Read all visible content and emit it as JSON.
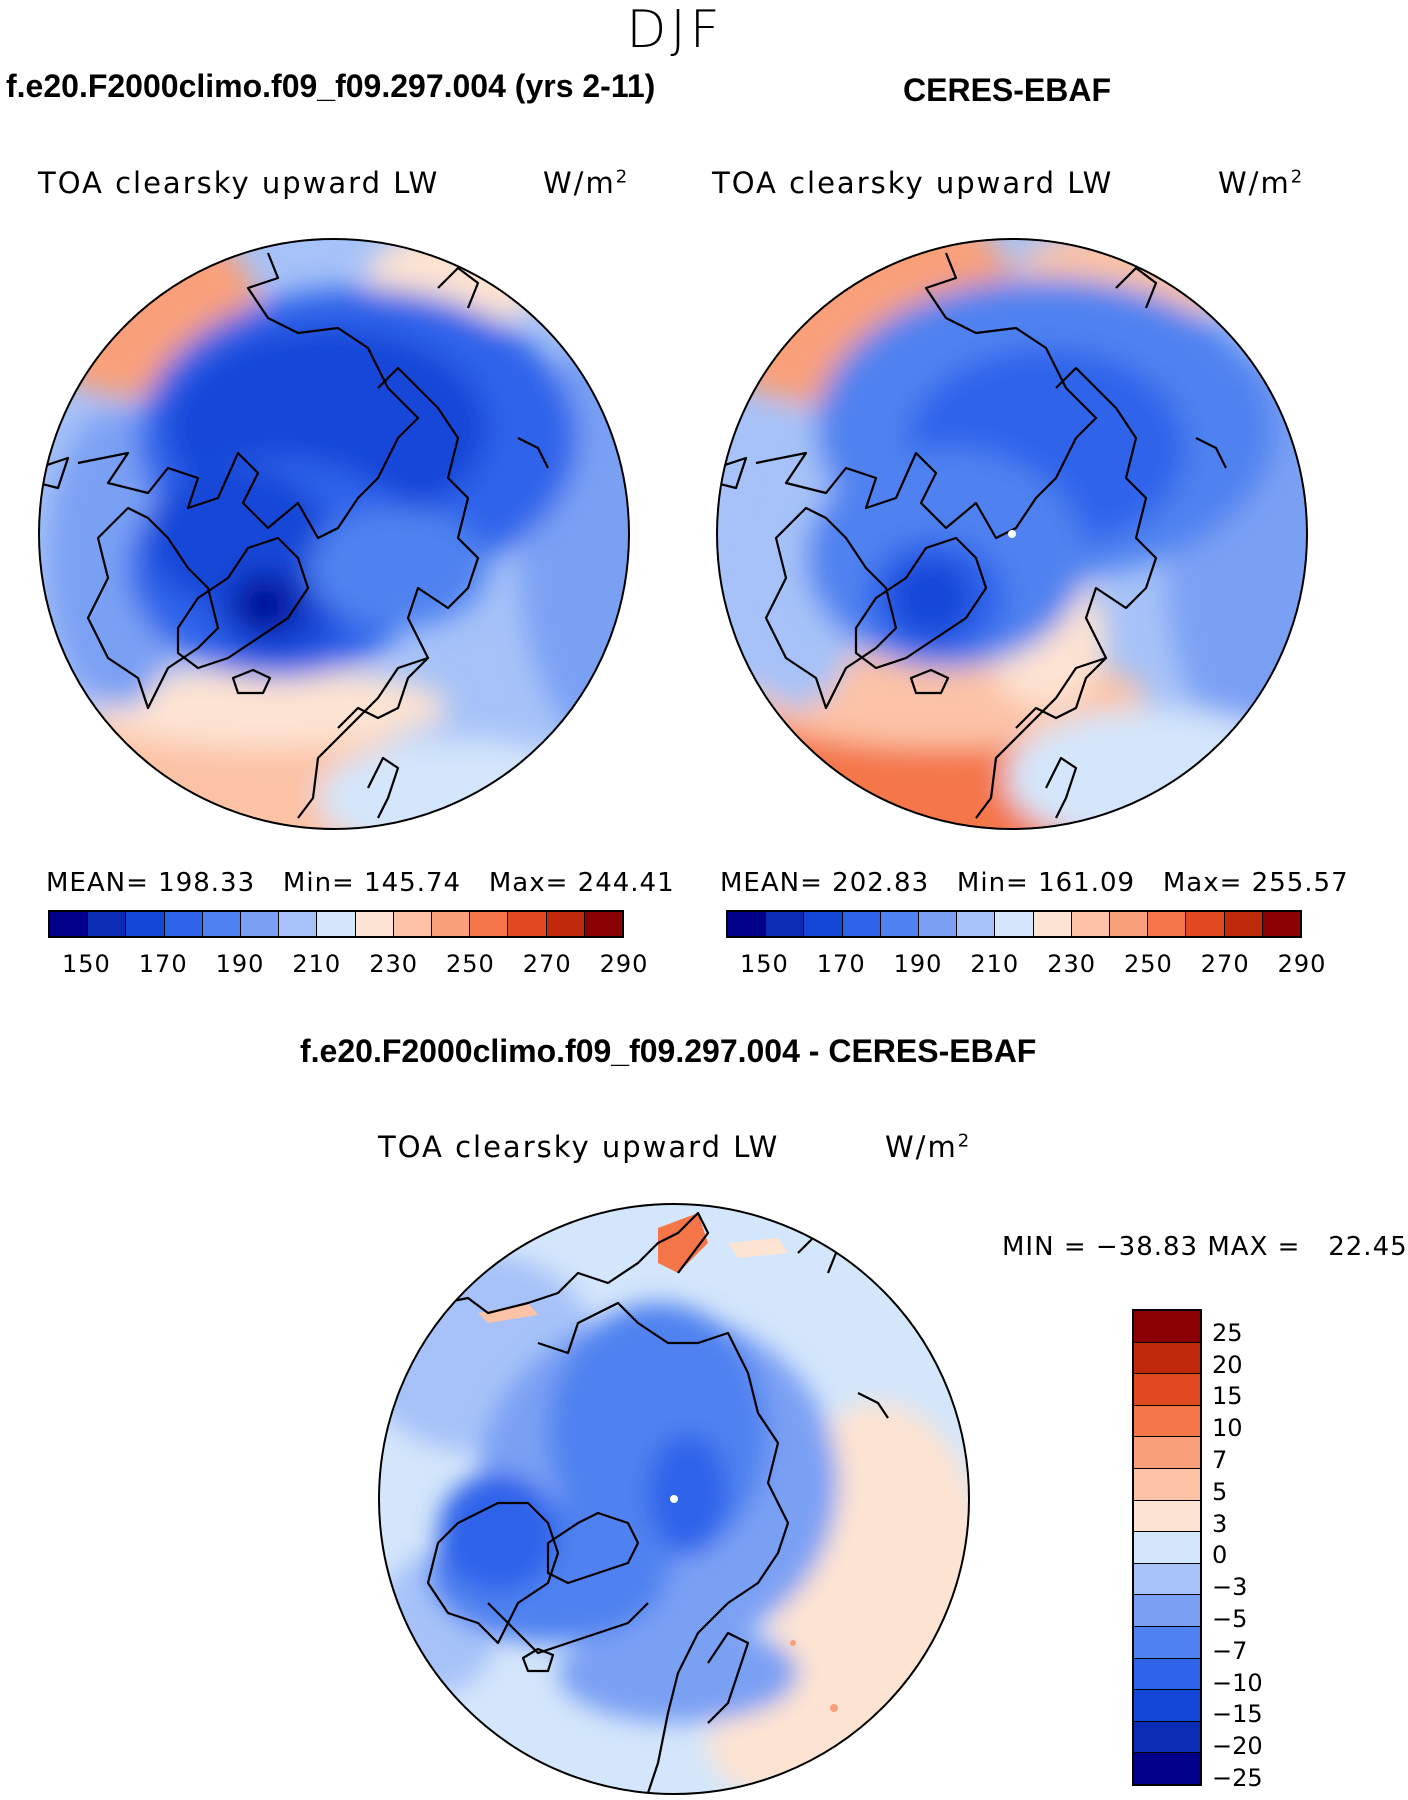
{
  "season": "DJF",
  "panels": {
    "model": {
      "title": "f.e20.F2000climo.f09_f09.297.004 (yrs 2-11)",
      "label": "TOA clearsky upward LW",
      "units": "W/m",
      "units_sup": "2",
      "stats": "MEAN= 198.33   Min= 145.74   Max= 244.41",
      "mean": 198.33,
      "min": 145.74,
      "max": 244.41
    },
    "obs": {
      "title": "CERES-EBAF",
      "label": "TOA clearsky upward LW",
      "units": "W/m",
      "units_sup": "2",
      "stats": "MEAN= 202.83   Min= 161.09   Max= 255.57",
      "mean": 202.83,
      "min": 161.09,
      "max": 255.57
    },
    "diff": {
      "title": "f.e20.F2000climo.f09_f09.297.004 - CERES-EBAF",
      "label": "TOA clearsky upward LW",
      "units": "W/m",
      "units_sup": "2",
      "stats": "MIN = −38.83 MAX =   22.45",
      "min": -38.83,
      "max": 22.45
    }
  },
  "abs_colorbar": {
    "colors": [
      "#00008b",
      "#0a2cb4",
      "#1446d8",
      "#2e64ea",
      "#4f82f0",
      "#7aa0f4",
      "#a6c2f8",
      "#d4e6fb",
      "#fde3d2",
      "#fcc3a6",
      "#f9a07a",
      "#f47648",
      "#e04a1e",
      "#c02a0a",
      "#8b0000"
    ],
    "ticks": [
      "150",
      "170",
      "190",
      "210",
      "230",
      "250",
      "270",
      "290"
    ]
  },
  "diff_colorbar": {
    "colors": [
      "#8b0000",
      "#c02a0a",
      "#e04a1e",
      "#f47648",
      "#f9a07a",
      "#fcc3a6",
      "#fde3d2",
      "#d4e6fb",
      "#a6c2f8",
      "#7aa0f4",
      "#4f82f0",
      "#2e64ea",
      "#1446d8",
      "#0a2cb4",
      "#00008b"
    ],
    "ticks": [
      "25",
      "20",
      "15",
      "10",
      "7",
      "5",
      "3",
      "0",
      "−3",
      "−5",
      "−7",
      "−10",
      "−15",
      "−20",
      "−25"
    ]
  }
}
